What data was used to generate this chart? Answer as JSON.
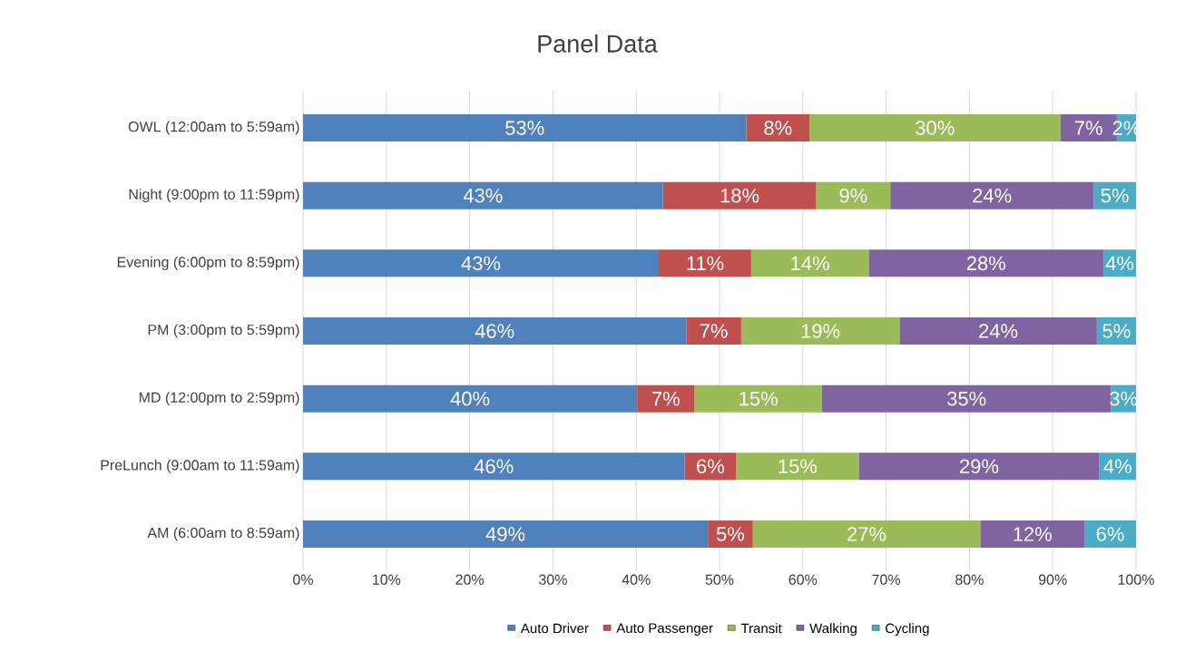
{
  "chart_data": {
    "type": "bar",
    "orientation": "horizontal",
    "stacked": true,
    "title": "Panel Data",
    "categories": [
      "OWL  (12:00am to 5:59am)",
      "Night  (9:00pm to 11:59pm)",
      "Evening  (6:00pm to 8:59pm)",
      "PM  (3:00pm to 5:59pm)",
      "MD  (12:00pm to 2:59pm)",
      "PreLunch  (9:00am to 11:59am)",
      "AM  (6:00am to 8:59am)"
    ],
    "series": [
      {
        "name": "Auto Driver",
        "color": "#4f81bd",
        "values": [
          53.2,
          43.2,
          42.7,
          46.0,
          40.1,
          45.8,
          48.6
        ],
        "value_labels": [
          "53%",
          "43%",
          "43%",
          "46%",
          "40%",
          "46%",
          "49%"
        ]
      },
      {
        "name": "Auto Passenger",
        "color": "#c0504d",
        "values": [
          7.6,
          18.4,
          11.1,
          6.6,
          6.9,
          6.2,
          5.4
        ],
        "value_labels": [
          "8%",
          "18%",
          "11%",
          "7%",
          "7%",
          "6%",
          "5%"
        ]
      },
      {
        "name": "Transit",
        "color": "#9bbb59",
        "values": [
          30.1,
          8.9,
          14.1,
          19.0,
          15.3,
          14.7,
          27.3
        ],
        "value_labels": [
          "30%",
          "9%",
          "14%",
          "19%",
          "15%",
          "15%",
          "27%"
        ]
      },
      {
        "name": "Walking",
        "color": "#8064a2",
        "values": [
          6.8,
          24.4,
          28.2,
          23.7,
          34.7,
          28.9,
          12.5
        ],
        "value_labels": [
          "7%",
          "24%",
          "28%",
          "24%",
          "35%",
          "29%",
          "12%"
        ]
      },
      {
        "name": "Cycling",
        "color": "#4bacc6",
        "values": [
          2.3,
          5.1,
          3.9,
          4.7,
          3.0,
          4.4,
          6.2
        ],
        "value_labels": [
          "2%",
          "5%",
          "4%",
          "5%",
          "3%",
          "4%",
          "6%"
        ]
      }
    ],
    "xlim": [
      0,
      100
    ],
    "xticks": [
      {
        "value": 0,
        "label": "0%"
      },
      {
        "value": 10,
        "label": "10%"
      },
      {
        "value": 20,
        "label": "20%"
      },
      {
        "value": 30,
        "label": "30%"
      },
      {
        "value": 40,
        "label": "40%"
      },
      {
        "value": 50,
        "label": "50%"
      },
      {
        "value": 60,
        "label": "60%"
      },
      {
        "value": 70,
        "label": "70%"
      },
      {
        "value": 80,
        "label": "80%"
      },
      {
        "value": 90,
        "label": "90%"
      },
      {
        "value": 100,
        "label": "100%"
      }
    ],
    "grid": "x",
    "legend": "bottom"
  }
}
